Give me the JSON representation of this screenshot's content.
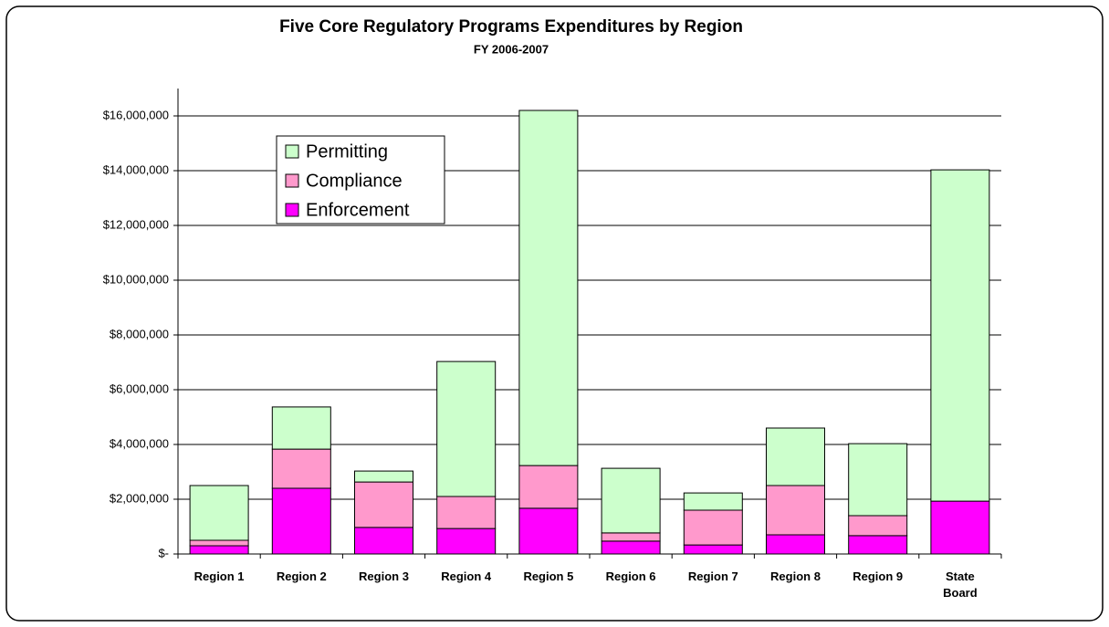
{
  "chart_data": {
    "type": "stacked_bar",
    "title": "Five Core Regulatory Programs Expenditures  by Region",
    "subtitle": "FY 2006-2007",
    "categories": [
      "Region 1",
      "Region 2",
      "Region 3",
      "Region 4",
      "Region 5",
      "Region 6",
      "Region 7",
      "Region 8",
      "Region 9",
      "State Board"
    ],
    "series": [
      {
        "name": "Enforcement",
        "color": "#ff00ff",
        "values": [
          300000,
          2400000,
          970000,
          930000,
          1670000,
          470000,
          330000,
          700000,
          670000,
          1930000
        ]
      },
      {
        "name": "Compliance",
        "color": "#ff99cc",
        "values": [
          200000,
          1430000,
          1660000,
          1170000,
          1560000,
          300000,
          1270000,
          1800000,
          730000,
          0
        ]
      },
      {
        "name": "Permitting",
        "color": "#ccffcc",
        "values": [
          2000000,
          1540000,
          400000,
          4930000,
          12970000,
          2360000,
          630000,
          2100000,
          2630000,
          12100000
        ]
      }
    ],
    "ylim": [
      0,
      16000000
    ],
    "yticks": [
      {
        "value": 0,
        "label": "$-"
      },
      {
        "value": 2000000,
        "label": "$2,000,000"
      },
      {
        "value": 4000000,
        "label": "$4,000,000"
      },
      {
        "value": 6000000,
        "label": "$6,000,000"
      },
      {
        "value": 8000000,
        "label": "$8,000,000"
      },
      {
        "value": 10000000,
        "label": "$10,000,000"
      },
      {
        "value": 12000000,
        "label": "$12,000,000"
      },
      {
        "value": 14000000,
        "label": "$14,000,000"
      },
      {
        "value": 16000000,
        "label": "$16,000,000"
      }
    ],
    "grid": true,
    "legend": "upper-left"
  }
}
